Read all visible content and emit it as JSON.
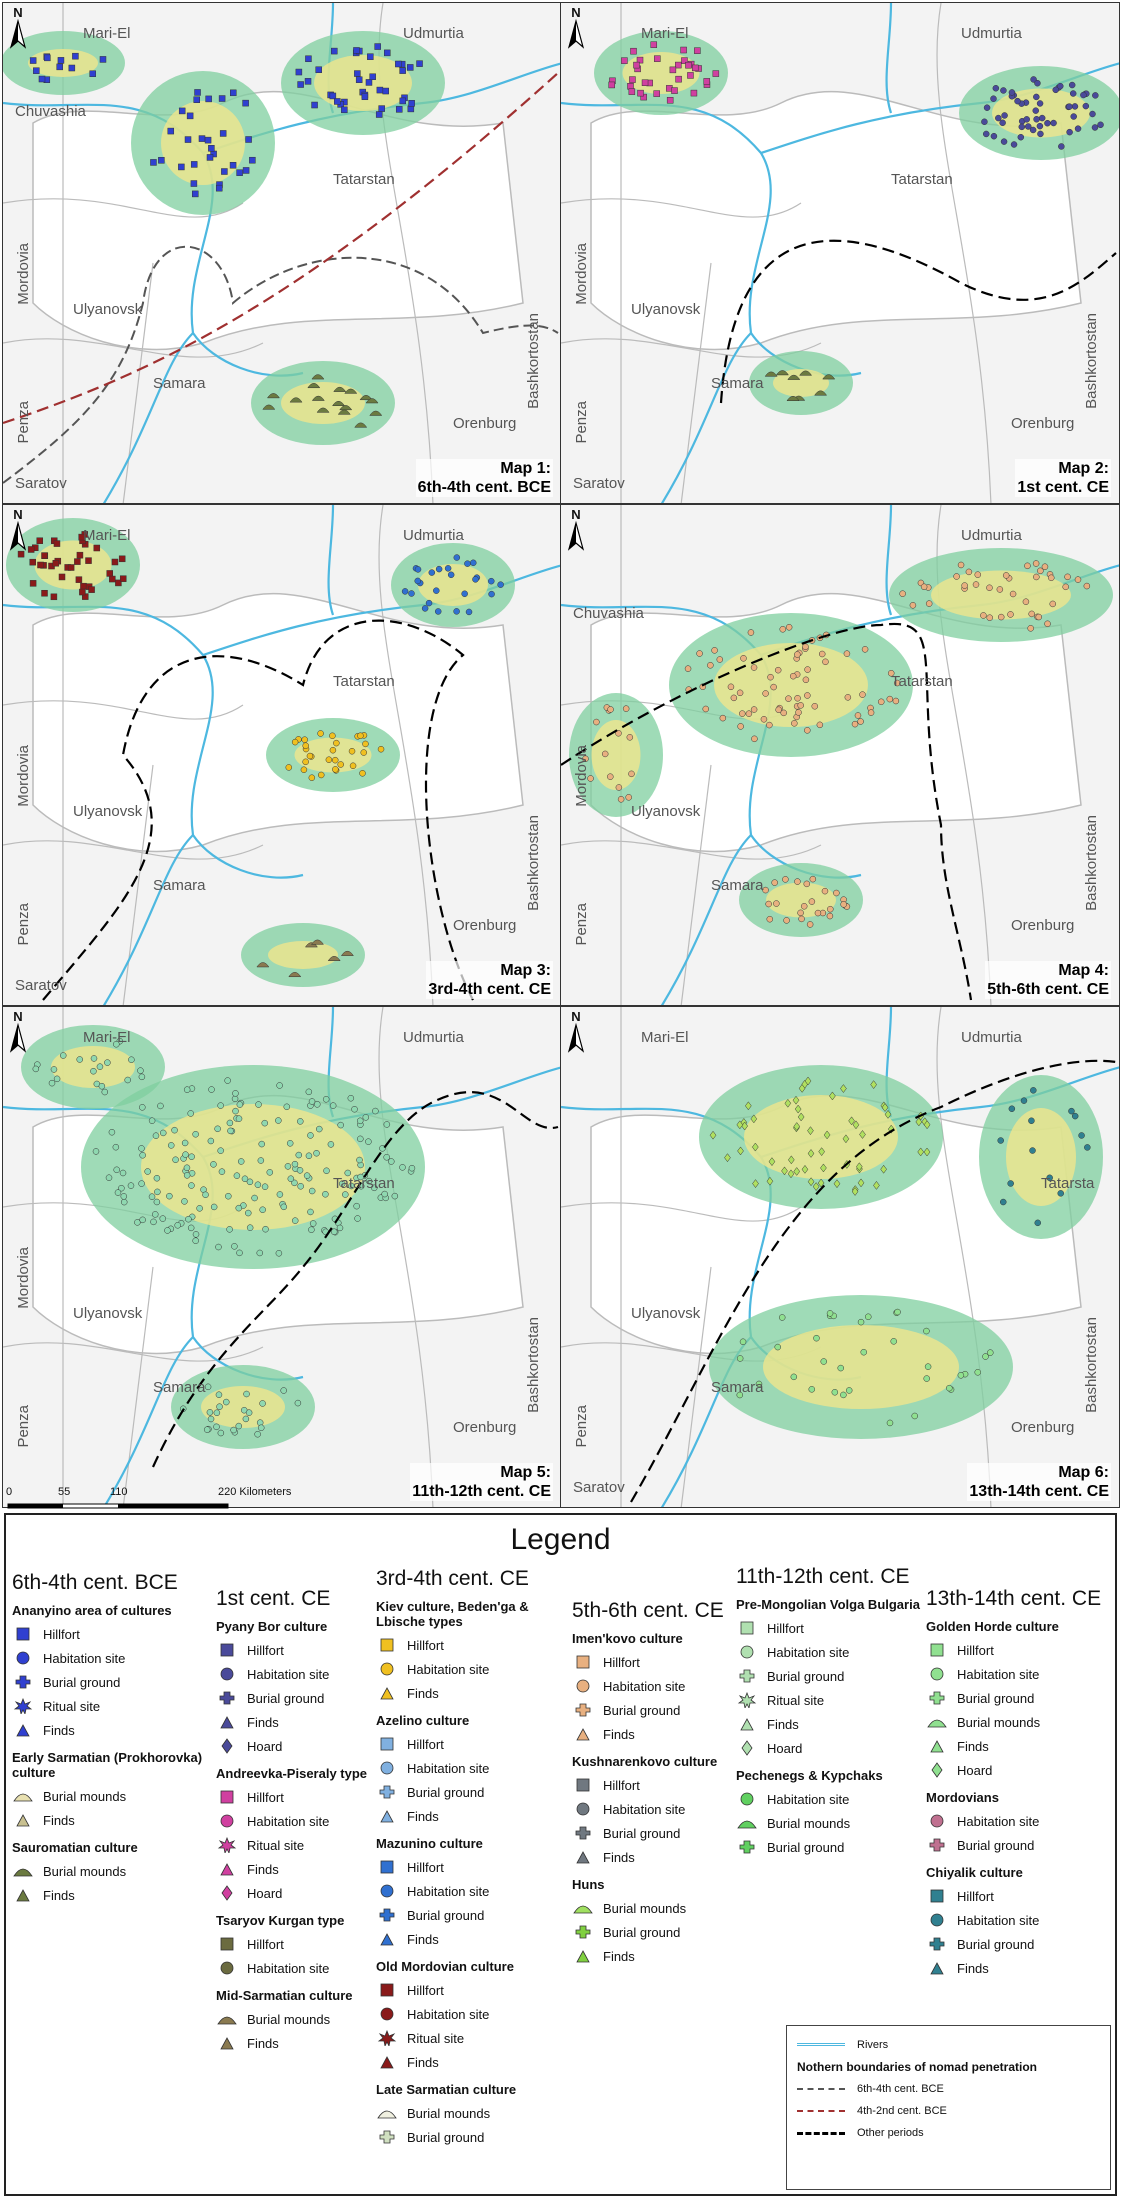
{
  "maps": [
    {
      "title_line1": "Map 1:",
      "title_line2": "6th-4th cent. BCE",
      "regions": [
        "Mari-El",
        "Udmurtia",
        "Chuvashia",
        "Tatarstan",
        "Mordovia",
        "Ulyanovsk",
        "Bashkortostan",
        "Penza",
        "Samara",
        "Orenburg",
        "Saratov"
      ]
    },
    {
      "title_line1": "Map 2:",
      "title_line2": "1st cent. CE",
      "regions": [
        "Mari-El",
        "Udmurtia",
        "Tatarstan",
        "Mordovia",
        "Ulyanovsk",
        "Bashkortostan",
        "Penza",
        "Samara",
        "Orenburg",
        "Saratov"
      ]
    },
    {
      "title_line1": "Map 3:",
      "title_line2": "3rd-4th cent. CE",
      "regions": [
        "Mari-El",
        "Udmurtia",
        "Tatarstan",
        "Mordovia",
        "Ulyanovsk",
        "Bashkortostan",
        "Penza",
        "Samara",
        "Orenburg",
        "Saratov"
      ]
    },
    {
      "title_line1": "Map 4:",
      "title_line2": "5th-6th cent. CE",
      "regions": [
        "Udmurtia",
        "Chuvashia",
        "Tatarstan",
        "Mordovia",
        "Ulyanovsk",
        "Bashkortostan",
        "Penza",
        "Samara",
        "Orenburg"
      ]
    },
    {
      "title_line1": "Map 5:",
      "title_line2": "11th-12th cent. CE",
      "regions": [
        "Mari-El",
        "Udmurtia",
        "Tatarstan",
        "Mordovia",
        "Ulyanovsk",
        "Bashkortostan",
        "Penza",
        "Samara",
        "Orenburg"
      ]
    },
    {
      "title_line1": "Map 6:",
      "title_line2": "13th-14th cent. CE",
      "regions": [
        "Mari-El",
        "Udmurtia",
        "Tatarsta",
        "Ulyanovsk",
        "Bashkortostan",
        "Penza",
        "Samara",
        "Orenburg",
        "Saratov"
      ]
    }
  ],
  "north_label": "N",
  "scale": {
    "ticks": [
      "0",
      "55",
      "110",
      "220 Kilometers"
    ]
  },
  "legend": {
    "title": "Legend",
    "columns": [
      {
        "period": "6th-4th cent. BCE",
        "groups": [
          {
            "culture": "Ananyino area of cultures",
            "items": [
              {
                "label": "Hillfort",
                "shape": "square",
                "color": "#3040d0"
              },
              {
                "label": "Habitation site",
                "shape": "circle",
                "color": "#3040d0"
              },
              {
                "label": "Burial ground",
                "shape": "cross",
                "color": "#3040d0"
              },
              {
                "label": "Ritual site",
                "shape": "star",
                "color": "#3040d0"
              },
              {
                "label": "Finds",
                "shape": "triangle",
                "color": "#3040d0"
              }
            ]
          },
          {
            "culture": "Early Sarmatian (Prokhorovka) culture",
            "items": [
              {
                "label": "Burial mounds",
                "shape": "mound",
                "color": "#e8e0b0"
              },
              {
                "label": "Finds",
                "shape": "triangle",
                "color": "#c8c090"
              }
            ]
          },
          {
            "culture": "Sauromatian culture",
            "items": [
              {
                "label": "Burial mounds",
                "shape": "mound",
                "color": "#6b7a40"
              },
              {
                "label": "Finds",
                "shape": "triangle",
                "color": "#6b7a40"
              }
            ]
          }
        ]
      },
      {
        "period": "1st cent. CE",
        "groups": [
          {
            "culture": "Pyany Bor culture",
            "items": [
              {
                "label": "Hillfort",
                "shape": "square",
                "color": "#4a4a9a"
              },
              {
                "label": "Habitation site",
                "shape": "circle",
                "color": "#4a4a9a"
              },
              {
                "label": "Burial ground",
                "shape": "cross",
                "color": "#4a4a9a"
              },
              {
                "label": "Finds",
                "shape": "triangle",
                "color": "#4a4a9a"
              },
              {
                "label": "Hoard",
                "shape": "diamond",
                "color": "#4a4a9a"
              }
            ]
          },
          {
            "culture": "Andreevka-Piseraly type",
            "items": [
              {
                "label": "Hillfort",
                "shape": "square",
                "color": "#d040a0"
              },
              {
                "label": "Habitation site",
                "shape": "circle",
                "color": "#d040a0"
              },
              {
                "label": "Ritual site",
                "shape": "star",
                "color": "#d040a0"
              },
              {
                "label": "Finds",
                "shape": "triangle",
                "color": "#d040a0"
              },
              {
                "label": "Hoard",
                "shape": "diamond",
                "color": "#d040a0"
              }
            ]
          },
          {
            "culture": "Tsaryov Kurgan type",
            "items": [
              {
                "label": "Hillfort",
                "shape": "square",
                "color": "#6b6b40"
              },
              {
                "label": "Habitation site",
                "shape": "circle",
                "color": "#6b6b40"
              }
            ]
          },
          {
            "culture": "Mid-Sarmatian culture",
            "items": [
              {
                "label": "Burial mounds",
                "shape": "mound",
                "color": "#8a7a50"
              },
              {
                "label": "Finds",
                "shape": "triangle",
                "color": "#8a7a50"
              }
            ]
          }
        ]
      },
      {
        "period": "3rd-4th cent. CE",
        "groups": [
          {
            "culture": "Kiev culture, Beden'ga & Lbische types",
            "items": [
              {
                "label": "Hillfort",
                "shape": "square",
                "color": "#f0c020"
              },
              {
                "label": "Habitation site",
                "shape": "circle",
                "color": "#f0c020"
              },
              {
                "label": "Finds",
                "shape": "triangle",
                "color": "#f0c020"
              }
            ]
          },
          {
            "culture": "Azelino culture",
            "items": [
              {
                "label": "Hillfort",
                "shape": "square",
                "color": "#80b0e0"
              },
              {
                "label": "Habitation site",
                "shape": "circle",
                "color": "#80b0e0"
              },
              {
                "label": "Burial ground",
                "shape": "cross",
                "color": "#80b0e0"
              },
              {
                "label": "Finds",
                "shape": "triangle",
                "color": "#80b0e0"
              }
            ]
          },
          {
            "culture": "Mazunino culture",
            "items": [
              {
                "label": "Hillfort",
                "shape": "square",
                "color": "#3070d0"
              },
              {
                "label": "Habitation site",
                "shape": "circle",
                "color": "#3070d0"
              },
              {
                "label": "Burial ground",
                "shape": "cross",
                "color": "#3070d0"
              },
              {
                "label": "Finds",
                "shape": "triangle",
                "color": "#3070d0"
              }
            ]
          },
          {
            "culture": "Old Mordovian culture",
            "items": [
              {
                "label": "Hillfort",
                "shape": "square",
                "color": "#8a1a1a"
              },
              {
                "label": "Habitation site",
                "shape": "circle",
                "color": "#8a1a1a"
              },
              {
                "label": "Ritual site",
                "shape": "star",
                "color": "#8a1a1a"
              },
              {
                "label": "Finds",
                "shape": "triangle",
                "color": "#8a1a1a"
              }
            ]
          },
          {
            "culture": "Late Sarmatian culture",
            "items": [
              {
                "label": "Burial mounds",
                "shape": "mound",
                "color": "#f0f0e0"
              },
              {
                "label": "Burial ground",
                "shape": "cross",
                "color": "#d0e0c0"
              }
            ]
          }
        ]
      },
      {
        "period": "5th-6th cent. CE",
        "groups": [
          {
            "culture": "Imen'kovo culture",
            "items": [
              {
                "label": "Hillfort",
                "shape": "square",
                "color": "#e8b080"
              },
              {
                "label": "Habitation site",
                "shape": "circle",
                "color": "#e8b080"
              },
              {
                "label": "Burial ground",
                "shape": "cross",
                "color": "#e8b080"
              },
              {
                "label": "Finds",
                "shape": "triangle",
                "color": "#e8b080"
              }
            ]
          },
          {
            "culture": "Kushnarenkovo culture",
            "items": [
              {
                "label": "Hillfort",
                "shape": "square",
                "color": "#707880"
              },
              {
                "label": "Habitation site",
                "shape": "circle",
                "color": "#707880"
              },
              {
                "label": "Burial ground",
                "shape": "cross",
                "color": "#707880"
              },
              {
                "label": "Finds",
                "shape": "triangle",
                "color": "#707880"
              }
            ]
          },
          {
            "culture": "Huns",
            "items": [
              {
                "label": "Burial mounds",
                "shape": "mound",
                "color": "#a0e060"
              },
              {
                "label": "Burial ground",
                "shape": "cross",
                "color": "#80d040"
              },
              {
                "label": "Finds",
                "shape": "triangle",
                "color": "#80d040"
              }
            ]
          }
        ]
      },
      {
        "period": "11th-12th cent. CE",
        "groups": [
          {
            "culture": "Pre-Mongolian Volga Bulgaria",
            "items": [
              {
                "label": "Hillfort",
                "shape": "square",
                "color": "#b0e0b0"
              },
              {
                "label": "Habitation site",
                "shape": "circle",
                "color": "#b0e0b0"
              },
              {
                "label": "Burial ground",
                "shape": "cross",
                "color": "#b0e0b0"
              },
              {
                "label": "Ritual site",
                "shape": "star",
                "color": "#b0e0b0"
              },
              {
                "label": "Finds",
                "shape": "triangle",
                "color": "#b0e0b0"
              },
              {
                "label": "Hoard",
                "shape": "diamond",
                "color": "#b0e0b0"
              }
            ]
          },
          {
            "culture": "Pechenegs & Kypchaks",
            "items": [
              {
                "label": "Habitation site",
                "shape": "circle",
                "color": "#60d060"
              },
              {
                "label": "Burial mounds",
                "shape": "mound",
                "color": "#60d060"
              },
              {
                "label": "Burial ground",
                "shape": "cross",
                "color": "#60d060"
              }
            ]
          }
        ]
      },
      {
        "period": "13th-14th cent. CE",
        "groups": [
          {
            "culture": "Golden Horde culture",
            "items": [
              {
                "label": "Hillfort",
                "shape": "square",
                "color": "#90e090"
              },
              {
                "label": "Habitation site",
                "shape": "circle",
                "color": "#90e090"
              },
              {
                "label": "Burial ground",
                "shape": "cross",
                "color": "#90e090"
              },
              {
                "label": "Burial mounds",
                "shape": "mound",
                "color": "#90e090"
              },
              {
                "label": "Finds",
                "shape": "triangle",
                "color": "#90e090"
              },
              {
                "label": "Hoard",
                "shape": "diamond",
                "color": "#90e090"
              }
            ]
          },
          {
            "culture": "Mordovians",
            "items": [
              {
                "label": "Habitation site",
                "shape": "circle",
                "color": "#c07090"
              },
              {
                "label": "Burial ground",
                "shape": "cross",
                "color": "#c07090"
              }
            ]
          },
          {
            "culture": "Chiyalik culture",
            "items": [
              {
                "label": "Hillfort",
                "shape": "square",
                "color": "#308090"
              },
              {
                "label": "Habitation site",
                "shape": "circle",
                "color": "#308090"
              },
              {
                "label": "Burial ground",
                "shape": "cross",
                "color": "#308090"
              },
              {
                "label": "Finds",
                "shape": "triangle",
                "color": "#308090"
              }
            ]
          }
        ]
      }
    ],
    "rivers_label": "Rivers",
    "boundaries_title": "Nothern boundaries of nomad penetration",
    "boundaries": [
      {
        "label": "6th-4th cent. BCE",
        "color": "#555555",
        "style": "dashed"
      },
      {
        "label": "4th-2nd cent. BCE",
        "color": "#a03030",
        "style": "dashed"
      },
      {
        "label": "Other periods",
        "color": "#000000",
        "style": "dashed"
      }
    ]
  },
  "colors": {
    "river": "#4db8e0",
    "border": "#bbbbbb",
    "buffer_outer": "#7fcf9f",
    "buffer_inner": "#f0e68c",
    "core": "#d08050"
  }
}
